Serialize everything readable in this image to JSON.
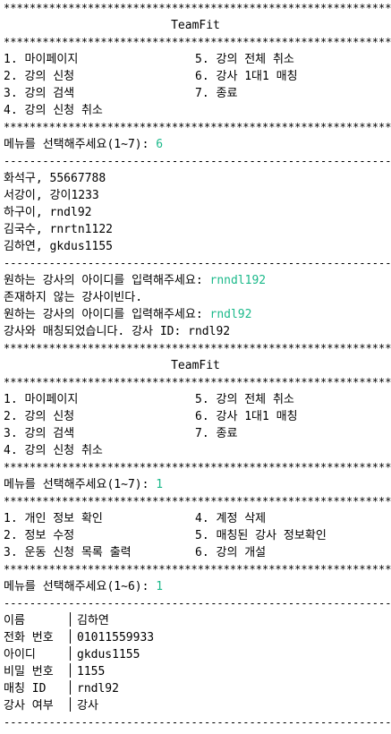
{
  "stars": "************************************************************",
  "dashes": "------------------------------------------------------------",
  "app_title": "TeamFit",
  "main_menu": {
    "left": [
      "1. 마이페이지",
      "2. 강의 신청",
      "3. 강의 검색",
      "4. 강의 신청 취소"
    ],
    "right": [
      "5. 강의 전체 취소",
      "6. 강사 1대1 매칭",
      "7. 종료"
    ]
  },
  "prompt_main": "메뉴를 선택해주세요(1~7): ",
  "first_choice": "6",
  "instructors": [
    "화석구, 55667788",
    "서강이, 강이1233",
    "하구이, rndl92",
    "김국수, rnrtn1122",
    "김하연, gkdus1155"
  ],
  "instructor_prompt": "원하는 강사의 아이디를 입력해주세요: ",
  "attempt1_input": "rnndl192",
  "not_exist_msg": "존재하지 않는 강사이빈다.",
  "attempt2_input": "rndl92",
  "matched_msg": "강사와 매칭되었습니다. 강사 ID: rndl92",
  "second_choice": "1",
  "mypage_menu": {
    "left": [
      "1. 개인 정보 확인",
      "2. 정보 수정",
      "3. 운동 신청 목록 출력"
    ],
    "right": [
      "4. 계정 삭제",
      "5. 매칭된 강사 정보확인",
      "6. 강의 개설"
    ]
  },
  "prompt_mypage": "메뉴를 선택해주세요(1~6): ",
  "third_choice": "1",
  "profile": [
    {
      "key": "이름",
      "value": "김하연"
    },
    {
      "key": "전화 번호",
      "value": "01011559933"
    },
    {
      "key": "아이디",
      "value": "gkdus1155"
    },
    {
      "key": "비밀 번호",
      "value": "1155"
    },
    {
      "key": "매칭 ID",
      "value": "rndl92"
    },
    {
      "key": "강사 여부",
      "value": "강사"
    }
  ]
}
